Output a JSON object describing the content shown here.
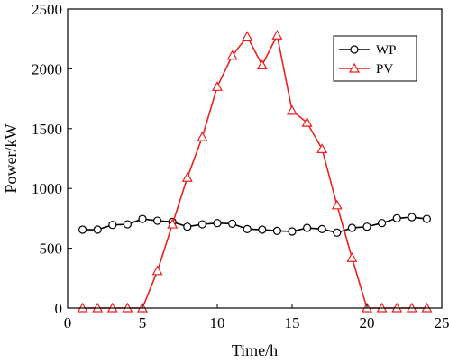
{
  "chart_data": {
    "type": "line",
    "xlabel": "Time/h",
    "ylabel": "Power/kW",
    "xlim": [
      0,
      25
    ],
    "ylim": [
      0,
      2500
    ],
    "xticks": [
      0,
      5,
      10,
      15,
      20,
      25
    ],
    "yticks": [
      0,
      500,
      1000,
      1500,
      2000,
      2500
    ],
    "grid": false,
    "legend_position": "top-right",
    "series": [
      {
        "name": "WP",
        "color": "#000000",
        "marker": "circle",
        "x": [
          1,
          2,
          3,
          4,
          5,
          6,
          7,
          8,
          9,
          10,
          11,
          12,
          13,
          14,
          15,
          16,
          17,
          18,
          19,
          20,
          21,
          22,
          23,
          24
        ],
        "y": [
          655,
          655,
          695,
          700,
          745,
          730,
          720,
          680,
          700,
          710,
          705,
          660,
          655,
          645,
          640,
          670,
          660,
          630,
          670,
          680,
          710,
          750,
          760,
          745
        ]
      },
      {
        "name": "PV",
        "color": "#e8211e",
        "marker": "triangle",
        "x": [
          1,
          2,
          3,
          4,
          5,
          6,
          7,
          8,
          9,
          10,
          11,
          12,
          13,
          14,
          15,
          16,
          17,
          18,
          19,
          20,
          21,
          22,
          23,
          24
        ],
        "y": [
          0,
          0,
          0,
          0,
          0,
          310,
          700,
          1090,
          1430,
          1850,
          2110,
          2270,
          2030,
          2280,
          1650,
          1550,
          1330,
          860,
          420,
          0,
          0,
          0,
          0,
          0
        ]
      }
    ]
  }
}
